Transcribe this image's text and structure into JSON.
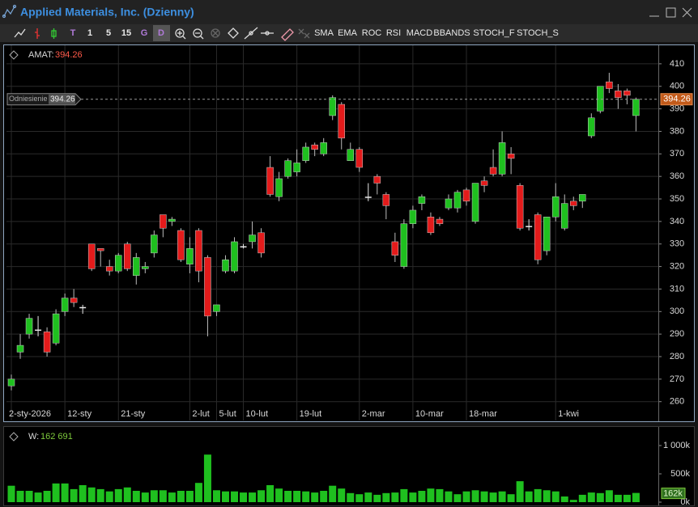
{
  "window": {
    "title": "Applied Materials, Inc. (Dzienny)",
    "periods": [
      "T",
      "1",
      "5",
      "15",
      "G",
      "D"
    ],
    "indicators": [
      "SMA",
      "EMA",
      "ROC",
      "RSI",
      "MACD",
      "BBANDS",
      "STOCH_F",
      "STOCH_S"
    ]
  },
  "chart_data": [
    {
      "type": "candlestick",
      "symbol_label": "AMAT:",
      "reference": {
        "label": "Odniesienie",
        "value": 394.26
      },
      "categories": [
        "2-sty-2026",
        null,
        null,
        null,
        null,
        null,
        "12-sty",
        null,
        null,
        null,
        null,
        null,
        "21-sty",
        null,
        null,
        null,
        null,
        null,
        null,
        null,
        "2-lut",
        null,
        null,
        "5-lut",
        null,
        null,
        "10-lut",
        null,
        null,
        null,
        null,
        null,
        "19-lut",
        null,
        null,
        null,
        null,
        null,
        null,
        "2-mar",
        null,
        null,
        null,
        null,
        null,
        "10-mar",
        null,
        null,
        null,
        null,
        null,
        "18-mar",
        null,
        null,
        null,
        null,
        null,
        null,
        null,
        null,
        null,
        "1-kwi",
        null,
        null,
        null,
        null,
        null,
        null,
        null,
        null,
        null
      ],
      "open": [
        267,
        282,
        290,
        292,
        291,
        286,
        300,
        306,
        302,
        330,
        328,
        320,
        318,
        330,
        316,
        319,
        326,
        343,
        340,
        336,
        321,
        336,
        324,
        300,
        318,
        318,
        329,
        331,
        335,
        364,
        351,
        360,
        362,
        367,
        374,
        370,
        387,
        392,
        367,
        372,
        351,
        360,
        352,
        331,
        320,
        339,
        348,
        342,
        341,
        346,
        346,
        354,
        340,
        358,
        364,
        361,
        370,
        356,
        338,
        343,
        327,
        342,
        337,
        349,
        349,
        378,
        389,
        402,
        398,
        398,
        387
      ],
      "high": [
        272,
        290,
        299,
        298,
        293,
        301,
        308,
        310,
        303,
        330,
        328,
        323,
        326,
        331,
        326,
        322,
        336,
        343,
        342,
        337,
        333,
        337,
        325,
        303,
        325,
        333,
        330,
        340,
        337,
        369,
        362,
        368,
        372,
        375,
        375,
        377,
        396,
        393,
        375,
        373,
        357,
        361,
        353,
        335,
        341,
        347,
        352,
        344,
        342,
        352,
        354,
        355,
        357,
        360,
        372,
        380,
        373,
        357,
        341,
        344,
        342,
        357,
        352,
        351,
        352,
        388,
        400,
        406,
        401,
        399,
        395
      ],
      "low": [
        265,
        279,
        288,
        289,
        280,
        285,
        298,
        302,
        299,
        318,
        320,
        316,
        317,
        318,
        312,
        317,
        324,
        333,
        338,
        322,
        317,
        313,
        289,
        298,
        317,
        317,
        328,
        328,
        324,
        351,
        349,
        359,
        360,
        366,
        369,
        369,
        385,
        372,
        367,
        362,
        349,
        352,
        341,
        322,
        319,
        337,
        345,
        334,
        338,
        345,
        344,
        347,
        339,
        353,
        360,
        360,
        361,
        336,
        336,
        321,
        325,
        340,
        336,
        345,
        346,
        377,
        388,
        397,
        390,
        392,
        380
      ],
      "close": [
        270,
        285,
        297,
        292,
        282,
        299,
        306,
        304,
        302,
        319,
        327,
        318,
        325,
        319,
        324,
        320,
        334,
        337,
        341,
        323,
        328,
        318,
        298,
        303,
        323,
        331,
        329,
        334,
        326,
        352,
        359,
        367,
        366,
        373,
        372,
        375,
        395,
        377,
        372,
        364,
        351,
        357,
        347,
        325,
        339,
        345,
        351,
        335,
        339,
        350,
        353,
        349,
        357,
        356,
        361,
        375,
        368,
        337,
        338,
        323,
        342,
        351,
        348,
        347,
        352,
        386,
        400,
        399,
        395,
        396,
        394.26
      ],
      "up_color": "#1fc01f",
      "down_color": "#e31b1b",
      "flat_color": "#e8e8e8",
      "ylim": [
        252,
        417.5
      ],
      "yticks": [
        260,
        270,
        280,
        290,
        300,
        310,
        320,
        330,
        340,
        350,
        360,
        370,
        380,
        390,
        400,
        410
      ],
      "grid": true
    },
    {
      "type": "bar",
      "readout_label": "W:",
      "readout": "162 691",
      "last_label": "162k",
      "color": "#1fc01f",
      "values": [
        290,
        200,
        200,
        170,
        200,
        330,
        330,
        230,
        300,
        260,
        230,
        190,
        230,
        260,
        200,
        170,
        210,
        210,
        170,
        200,
        200,
        340,
        840,
        210,
        190,
        190,
        170,
        170,
        210,
        300,
        240,
        200,
        200,
        190,
        170,
        200,
        290,
        240,
        160,
        140,
        170,
        130,
        160,
        170,
        230,
        170,
        200,
        240,
        230,
        190,
        140,
        190,
        210,
        190,
        170,
        190,
        140,
        370,
        190,
        230,
        210,
        190,
        100,
        40,
        130,
        170,
        160,
        210,
        130,
        130,
        162.691
      ],
      "ylim": [
        0,
        1300
      ],
      "yticks": [
        {
          "value": 1000,
          "label": "1 000k"
        },
        {
          "value": 500,
          "label": "500k"
        },
        {
          "value": 0,
          "label": "0k"
        }
      ]
    }
  ]
}
